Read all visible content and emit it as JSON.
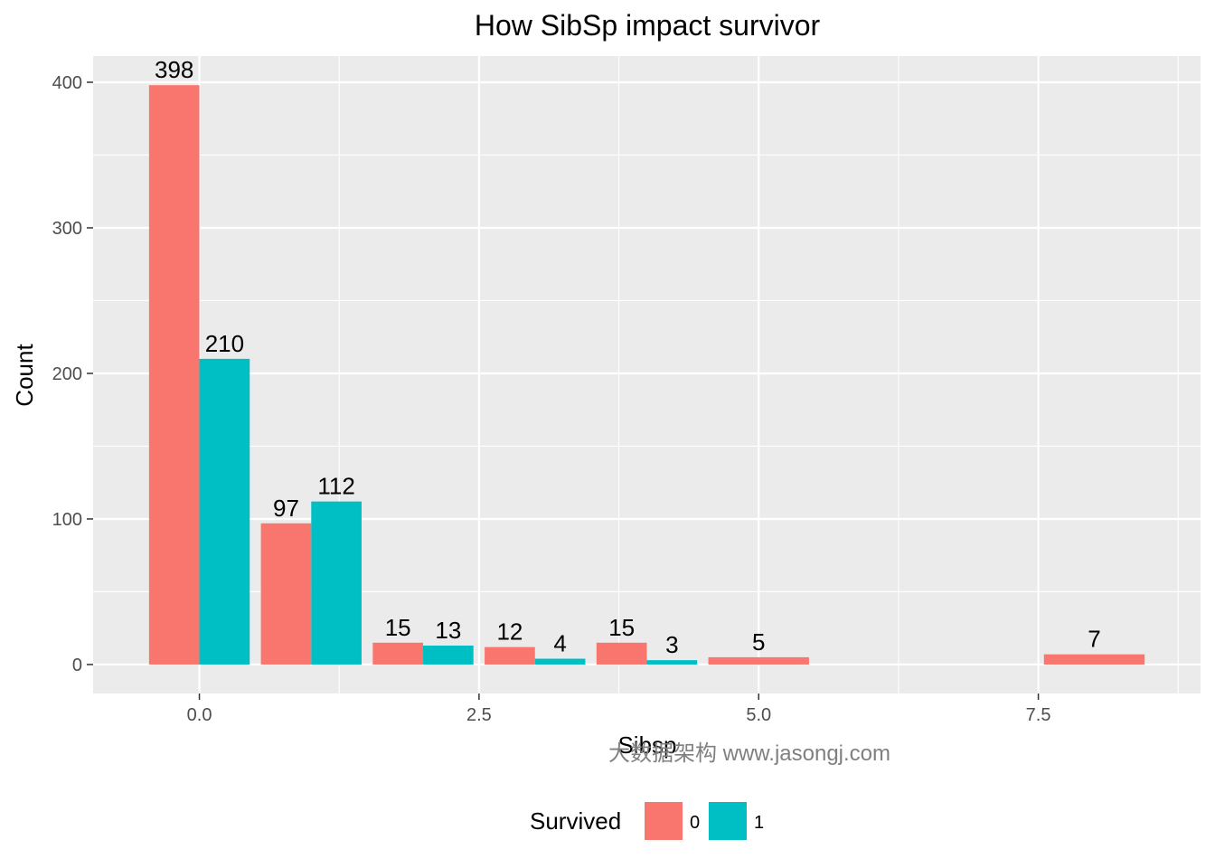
{
  "chart_data": {
    "type": "bar",
    "title": "How SibSp impact survivor",
    "xlabel": "Sibsp",
    "ylabel": "Count",
    "x_ticks": [
      0.0,
      2.5,
      5.0,
      7.5
    ],
    "x_tick_labels": [
      "0.0",
      "2.5",
      "5.0",
      "7.5"
    ],
    "y_ticks": [
      0,
      100,
      200,
      300,
      400
    ],
    "y_tick_labels": [
      "0",
      "100",
      "200",
      "300",
      "400"
    ],
    "xlim": [
      -0.95,
      8.95
    ],
    "ylim": [
      -19.9,
      418
    ],
    "grid": true,
    "legend_position": "bottom",
    "legend_title": "Survived",
    "series": [
      {
        "name": "0",
        "color": "#F8766D",
        "x": [
          0,
          1,
          2,
          3,
          4,
          5,
          8
        ],
        "values": [
          398,
          97,
          15,
          12,
          15,
          5,
          7
        ],
        "labels": [
          "398",
          "97",
          "15",
          "12",
          "15",
          "5",
          "7"
        ]
      },
      {
        "name": "1",
        "color": "#00BFC4",
        "x": [
          0,
          1,
          2,
          3,
          4
        ],
        "values": [
          210,
          112,
          13,
          4,
          3
        ],
        "labels": [
          "210",
          "112",
          "13",
          "4",
          "3"
        ]
      }
    ]
  },
  "watermark": "大数据架构  www.jasongj.com"
}
